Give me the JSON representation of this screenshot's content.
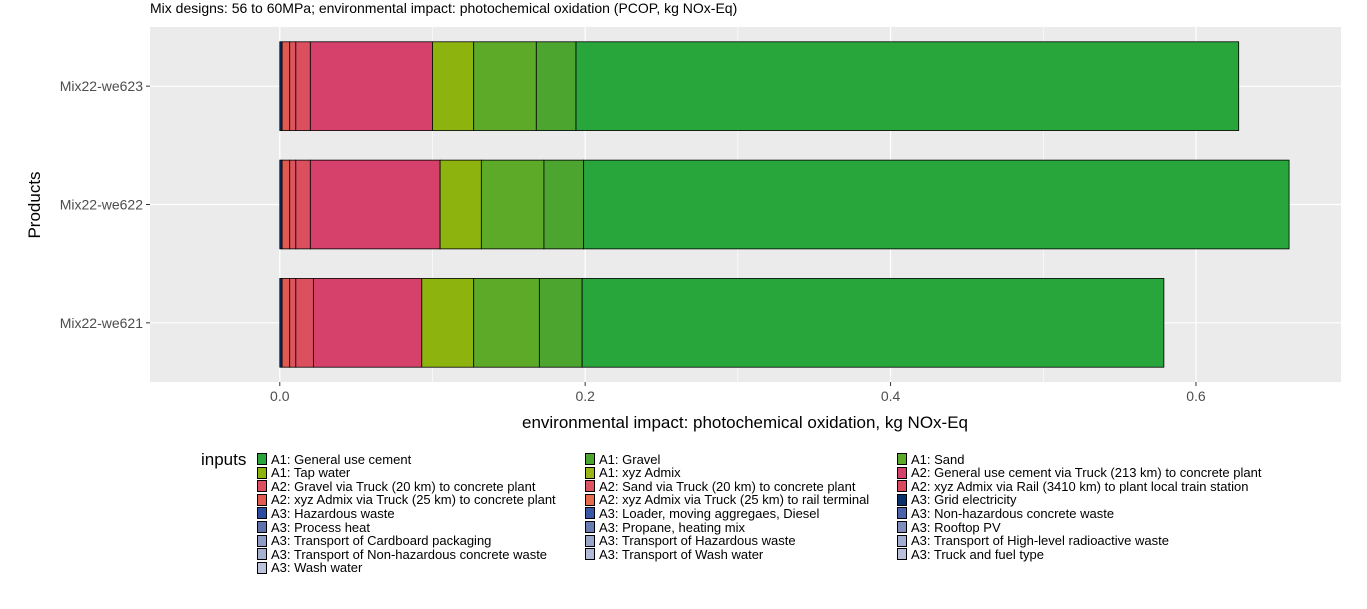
{
  "chart_data": {
    "type": "bar",
    "orientation": "horizontal",
    "stacked": true,
    "title": "Mix designs: 56 to 60MPa; environmental impact: photochemical oxidation (PCOP, kg NOx-Eq)",
    "xlabel": "environmental impact: photochemical oxidation, kg NOx-Eq",
    "ylabel": "Products",
    "xlim": [
      -0.085,
      0.695
    ],
    "xticks": [
      0.0,
      0.2,
      0.4,
      0.6
    ],
    "xtick_labels": [
      "0.0",
      "0.2",
      "0.4",
      "0.6"
    ],
    "categories": [
      "Mix22-we621",
      "Mix22-we622",
      "Mix22-we623"
    ],
    "grid": true,
    "legend_title": "inputs",
    "legend_placement": "bottom",
    "series": [
      {
        "name": "A3: Grid electricity",
        "color": "#08306b",
        "values": [
          0.0015,
          0.0015,
          0.0015
        ]
      },
      {
        "name": "A2: xyz Admix via Truck (25 km) to concrete plant",
        "color": "#e05a4f",
        "values": [
          0.005,
          0.005,
          0.005
        ]
      },
      {
        "name": "A2: Sand via Truck (20 km) to concrete plant",
        "color": "#de5360",
        "values": [
          0.004,
          0.004,
          0.004
        ]
      },
      {
        "name": "A2: Gravel via Truck (20 km) to concrete plant",
        "color": "#db4f5f",
        "values": [
          0.0115,
          0.0095,
          0.0095
        ]
      },
      {
        "name": "A2: General use cement via Truck (213 km) to concrete plant",
        "color": "#d6416b",
        "values": [
          0.071,
          0.085,
          0.08
        ]
      },
      {
        "name": "A1: Tap water",
        "color": "#8db30e",
        "values": [
          0.034,
          0.027,
          0.027
        ]
      },
      {
        "name": "A1: Sand",
        "color": "#5daa29",
        "values": [
          0.043,
          0.041,
          0.041
        ]
      },
      {
        "name": "A1: Gravel",
        "color": "#4ca52f",
        "values": [
          0.028,
          0.026,
          0.026
        ]
      },
      {
        "name": "A1: General use cement",
        "color": "#28a63c",
        "values": [
          0.381,
          0.462,
          0.434
        ]
      }
    ]
  },
  "legend": {
    "title": "inputs",
    "items": [
      {
        "label": "A1: General use cement",
        "color": "#28a63c"
      },
      {
        "label": "A1: Tap water",
        "color": "#8db30e"
      },
      {
        "label": "A2: Gravel via Truck (20 km) to concrete plant",
        "color": "#db4f5f"
      },
      {
        "label": "A2: xyz Admix via Truck (25 km) to concrete plant",
        "color": "#e05a4f"
      },
      {
        "label": "A3: Hazardous waste",
        "color": "#2b4c9f"
      },
      {
        "label": "A3: Process heat",
        "color": "#5e73ad"
      },
      {
        "label": "A3: Transport of Cardboard packaging",
        "color": "#8e9cc4"
      },
      {
        "label": "A3: Transport of Non-hazardous concrete waste",
        "color": "#a6b0cf"
      },
      {
        "label": "A3: Wash water",
        "color": "#bcc3dc"
      },
      {
        "label": "A1: Gravel",
        "color": "#4ca52f"
      },
      {
        "label": "A1: xyz Admix",
        "color": "#9bb516"
      },
      {
        "label": "A2: Sand via Truck (20 km) to concrete plant",
        "color": "#de5360"
      },
      {
        "label": "A2: xyz Admix via Truck (25 km) to rail terminal",
        "color": "#e56a4e"
      },
      {
        "label": "A3: Loader, moving aggregaes, Diesel",
        "color": "#3a56a6"
      },
      {
        "label": "A3: Propane, heating mix",
        "color": "#6a7db3"
      },
      {
        "label": "A3: Transport of Hazardous waste",
        "color": "#98a5c9"
      },
      {
        "label": "A3: Transport of Wash water",
        "color": "#b1bad6"
      },
      {
        "label": "A1: Sand",
        "color": "#5daa29"
      },
      {
        "label": "A2: General use cement via Truck (213 km) to concrete plant",
        "color": "#d6416b"
      },
      {
        "label": "A2: xyz Admix via Rail (3410 km) to plant local train station",
        "color": "#d94a5f"
      },
      {
        "label": "A3: Grid electricity",
        "color": "#08306b"
      },
      {
        "label": "A3: Non-hazardous concrete waste",
        "color": "#4a63aa"
      },
      {
        "label": "A3: Rooftop PV",
        "color": "#7e8dbc"
      },
      {
        "label": "A3: Transport of High-level radioactive waste",
        "color": "#a3add0"
      },
      {
        "label": "A3: Truck and fuel type",
        "color": "#b8c0da"
      }
    ]
  }
}
